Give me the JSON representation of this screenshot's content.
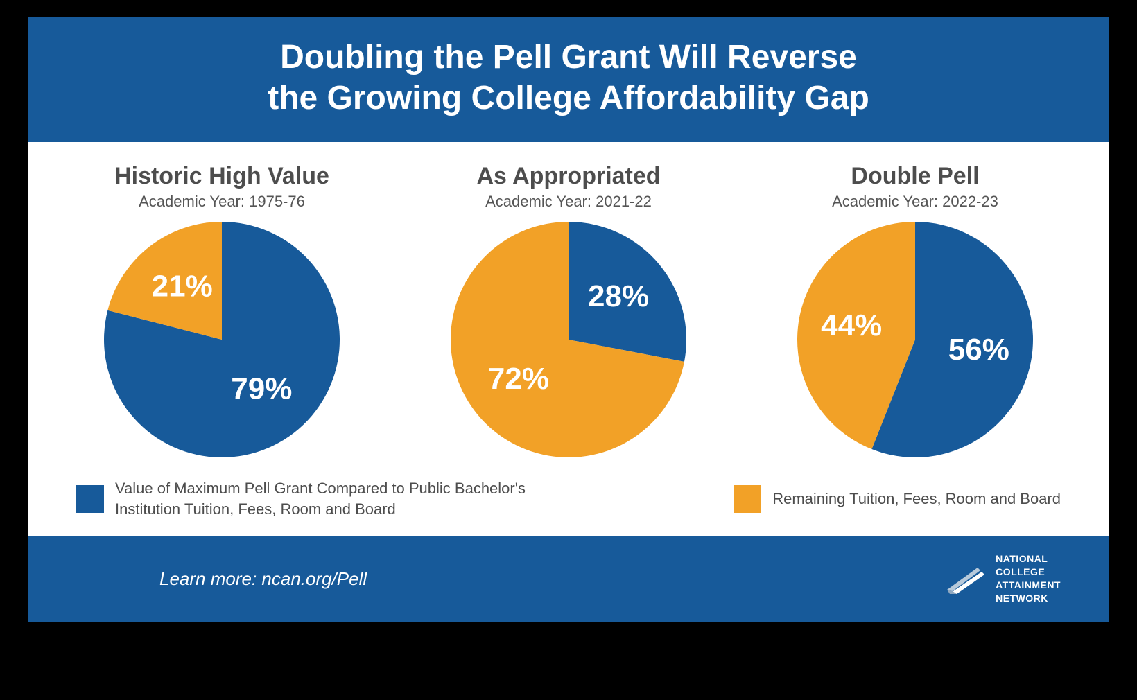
{
  "colors": {
    "brand_blue": "#175a9a",
    "accent_orange": "#f2a127",
    "text_gray": "#4d4d4d",
    "white": "#ffffff",
    "black": "#000000"
  },
  "header": {
    "title_line1": "Doubling the Pell Grant Will Reverse",
    "title_line2": "the Growing College Affordability Gap"
  },
  "charts": [
    {
      "title": "Historic High Value",
      "subtitle": "Academic Year: 1975-76",
      "pell_pct": 79,
      "remaining_pct": 21,
      "pell_label": "79%",
      "remaining_label": "21%",
      "pell_color": "#175a9a",
      "remaining_color": "#f2a127",
      "diameter": 340,
      "label_fontsize": 44,
      "start_angle_deg": 0
    },
    {
      "title": "As Appropriated",
      "subtitle": "Academic Year: 2021-22",
      "pell_pct": 28,
      "remaining_pct": 72,
      "pell_label": "28%",
      "remaining_label": "72%",
      "pell_color": "#175a9a",
      "remaining_color": "#f2a127",
      "diameter": 340,
      "label_fontsize": 44,
      "start_angle_deg": 0
    },
    {
      "title": "Double Pell",
      "subtitle": "Academic Year: 2022-23",
      "pell_pct": 56,
      "remaining_pct": 44,
      "pell_label": "56%",
      "remaining_label": "44%",
      "pell_color": "#175a9a",
      "remaining_color": "#f2a127",
      "diameter": 340,
      "label_fontsize": 44,
      "start_angle_deg": 0
    }
  ],
  "legend": {
    "pell": {
      "label": "Value of Maximum Pell Grant Compared to Public Bachelor's Institution Tuition, Fees, Room and Board",
      "color": "#175a9a"
    },
    "remaining": {
      "label": "Remaining Tuition, Fees, Room and Board",
      "color": "#f2a127"
    }
  },
  "footer": {
    "learn_more": "Learn more: ncan.org/Pell",
    "org_lines": [
      "NATIONAL",
      "COLLEGE",
      "ATTAINMENT",
      "NETWORK"
    ]
  }
}
